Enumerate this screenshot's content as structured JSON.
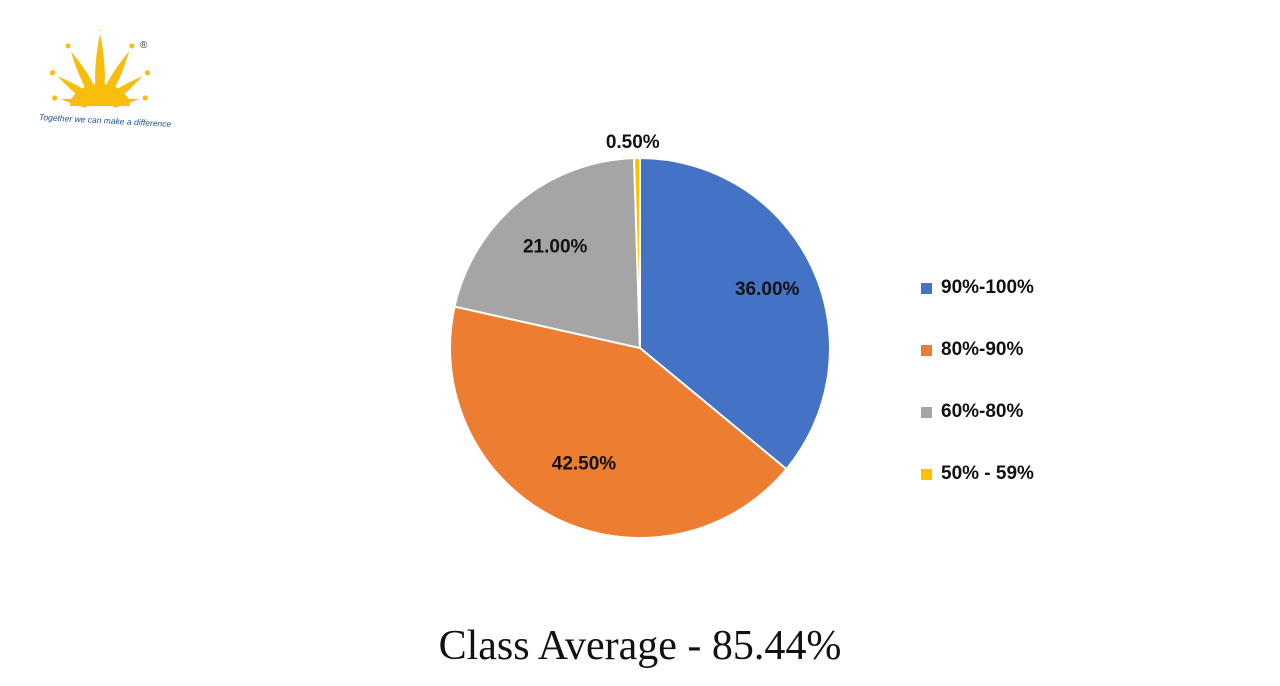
{
  "logo": {
    "tagline": "Together we can make a difference",
    "registered_mark": "®",
    "color": "#f7be0d"
  },
  "chart_data": {
    "type": "pie",
    "categories": [
      "90%-100%",
      "80%-90%",
      "60%-80%",
      "50% - 59%"
    ],
    "values": [
      36.0,
      42.5,
      21.0,
      0.5
    ],
    "data_labels": [
      "36.00%",
      "42.50%",
      "21.00%",
      "0.50%"
    ],
    "colors": [
      "#4472c4",
      "#ed7d31",
      "#a5a5a5",
      "#ffc000"
    ],
    "legend_position": "right",
    "start_angle": "top, clockwise"
  },
  "legend": {
    "items": [
      {
        "label": "90%-100%",
        "color": "#4472c4"
      },
      {
        "label": "80%-90%",
        "color": "#ed7d31"
      },
      {
        "label": "60%-80%",
        "color": "#a5a5a5"
      },
      {
        "label": "50% - 59%",
        "color": "#ffc000"
      }
    ]
  },
  "footer": {
    "title": "Class Average - 85.44%"
  }
}
